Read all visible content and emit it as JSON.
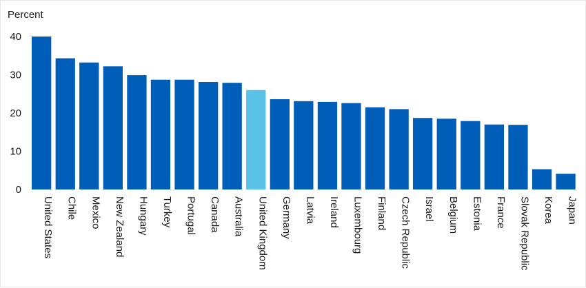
{
  "chart_data": {
    "type": "bar",
    "unit_label": "Percent",
    "categories": [
      "United States",
      "Chile",
      "Mexico",
      "New Zealand",
      "Hungary",
      "Turkey",
      "Portugal",
      "Canada",
      "Australia",
      "United Kingdom",
      "Germany",
      "Latvia",
      "Ireland",
      "Luxembourg",
      "Finland",
      "Czech Republic",
      "Israel",
      "Belgium",
      "Estonia",
      "France",
      "Slovak Republic",
      "Korea",
      "Japan"
    ],
    "values": [
      40.0,
      34.3,
      33.2,
      32.2,
      29.9,
      28.7,
      28.7,
      28.1,
      27.9,
      26.0,
      23.6,
      23.1,
      22.9,
      22.6,
      21.5,
      21.0,
      18.7,
      18.5,
      17.9,
      17.0,
      16.9,
      5.3,
      4.1
    ],
    "highlight_category": "United Kingdom",
    "colors": {
      "default": "#005eb8",
      "highlight": "#5bc2e7"
    },
    "ylim": [
      0,
      40
    ],
    "yticks": [
      0,
      10,
      20,
      30,
      40
    ],
    "grid": false,
    "legend": "none"
  }
}
